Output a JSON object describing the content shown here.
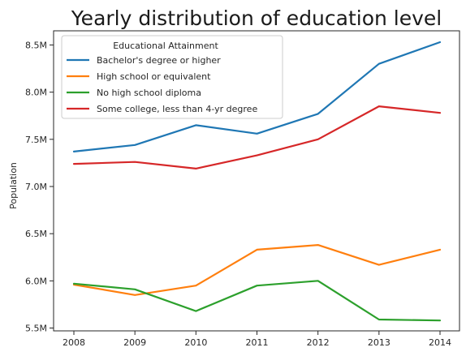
{
  "chart_data": {
    "type": "line",
    "title": "Yearly distribution of education level",
    "xlabel": "",
    "ylabel": "Population",
    "x": [
      2008,
      2009,
      2010,
      2011,
      2012,
      2013,
      2014
    ],
    "x_tick_labels": [
      "2008",
      "2009",
      "2010",
      "2011",
      "2012",
      "2013",
      "2014"
    ],
    "ylim": [
      5.47,
      8.65
    ],
    "y_ticks": [
      5.5,
      6.0,
      6.5,
      7.0,
      7.5,
      8.0,
      8.5
    ],
    "y_tick_labels": [
      "5.5M",
      "6.0M",
      "6.5M",
      "7.0M",
      "7.5M",
      "8.0M",
      "8.5M"
    ],
    "y_unit": "millions",
    "grid": false,
    "legend": {
      "title": "Educational Attainment",
      "placement": "top-left"
    },
    "series": [
      {
        "name": "Bachelor's degree or higher",
        "color": "#1f77b4",
        "values": [
          7.37,
          7.44,
          7.65,
          7.56,
          7.77,
          8.3,
          8.53
        ]
      },
      {
        "name": "High school or equivalent",
        "color": "#ff7f0e",
        "values": [
          5.96,
          5.85,
          5.95,
          6.33,
          6.38,
          6.17,
          6.33
        ]
      },
      {
        "name": "No high school diploma",
        "color": "#2ca02c",
        "values": [
          5.97,
          5.91,
          5.68,
          5.95,
          6.0,
          5.59,
          5.58
        ]
      },
      {
        "name": "Some college, less than 4-yr degree",
        "color": "#d62728",
        "values": [
          7.24,
          7.26,
          7.19,
          7.33,
          7.5,
          7.85,
          7.78
        ]
      }
    ]
  }
}
